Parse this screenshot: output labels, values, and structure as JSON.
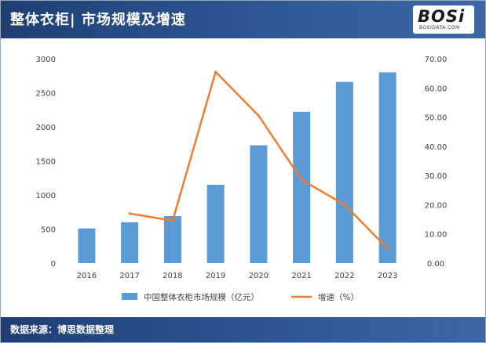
{
  "header": {
    "title": "整体衣柜| 市场规模及增速"
  },
  "logo": {
    "text": "BOSi",
    "url": "BOSIDATA.COM"
  },
  "footer": {
    "source": "数据来源：博思数据整理"
  },
  "colors": {
    "bar": "#5b9bd5",
    "line": "#ed7d31",
    "header": "#2e5797"
  },
  "chart_data": {
    "type": "bar+line",
    "categories": [
      "2016",
      "2017",
      "2018",
      "2019",
      "2020",
      "2021",
      "2022",
      "2023"
    ],
    "series": [
      {
        "name": "中国整体衣柜市场规模（亿元）",
        "type": "bar",
        "axis": "left",
        "values": [
          510,
          600,
          690,
          1150,
          1730,
          2220,
          2660,
          2800
        ]
      },
      {
        "name": "增速（%）",
        "type": "line",
        "axis": "right",
        "values": [
          null,
          17.0,
          14.5,
          65.5,
          50.5,
          28.5,
          20.0,
          5.0
        ]
      }
    ],
    "y_left": {
      "min": 0,
      "max": 3000,
      "ticks": [
        "0",
        "500",
        "1000",
        "1500",
        "2000",
        "2500",
        "3000"
      ]
    },
    "y_right": {
      "min": 0,
      "max": 70,
      "ticks": [
        "0.00",
        "10.00",
        "20.00",
        "30.00",
        "40.00",
        "50.00",
        "60.00",
        "70.00"
      ]
    },
    "grid": false,
    "legend": "bottom"
  }
}
